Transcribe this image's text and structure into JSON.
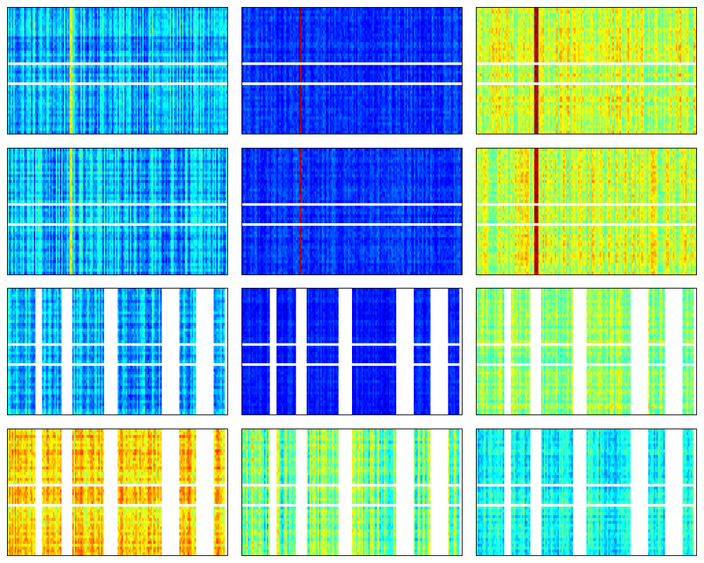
{
  "chart_data": {
    "type": "heatmap",
    "grid": {
      "rows": 4,
      "cols": 3
    },
    "title": "",
    "xlabel": "",
    "ylabel": "",
    "colormap": "jet",
    "colormap_stops": [
      "#00007f",
      "#0000ff",
      "#007fff",
      "#00ffff",
      "#7fff7f",
      "#ffff00",
      "#ff7f00",
      "#ff0000",
      "#7f0000"
    ],
    "missing_color": "#ffffff",
    "n_columns": 160,
    "n_rows": 44,
    "missing_rows": [
      19,
      26
    ],
    "missing_column_ranges": [
      [
        20,
        25
      ],
      [
        39,
        47
      ],
      [
        70,
        80
      ],
      [
        112,
        125
      ],
      [
        137,
        150
      ],
      [
        158,
        160
      ]
    ],
    "panels": [
      {
        "name": "row1-col1",
        "base_level": 0.3,
        "column_variation": 0.12,
        "row_variation": 0.05,
        "noise": 0.05,
        "hot_columns": [
          [
            45,
            47,
            0.65
          ]
        ],
        "column_gaps": false
      },
      {
        "name": "row1-col2",
        "base_level": 0.17,
        "column_variation": 0.05,
        "row_variation": 0.02,
        "noise": 0.04,
        "hot_columns": [
          [
            42,
            43,
            0.95
          ]
        ],
        "column_gaps": false
      },
      {
        "name": "row1-col3",
        "base_level": 0.58,
        "column_variation": 0.1,
        "row_variation": 0.04,
        "noise": 0.05,
        "hot_columns": [
          [
            42,
            45,
            0.95
          ]
        ],
        "column_gaps": false
      },
      {
        "name": "row2-col1",
        "base_level": 0.3,
        "column_variation": 0.12,
        "row_variation": 0.05,
        "noise": 0.05,
        "hot_columns": [
          [
            45,
            47,
            0.65
          ]
        ],
        "column_gaps": false
      },
      {
        "name": "row2-col2",
        "base_level": 0.17,
        "column_variation": 0.05,
        "row_variation": 0.02,
        "noise": 0.04,
        "hot_columns": [
          [
            42,
            43,
            0.95
          ]
        ],
        "column_gaps": false
      },
      {
        "name": "row2-col3",
        "base_level": 0.58,
        "column_variation": 0.1,
        "row_variation": 0.04,
        "noise": 0.05,
        "hot_columns": [
          [
            42,
            45,
            0.95
          ]
        ],
        "column_gaps": false
      },
      {
        "name": "row3-col1",
        "base_level": 0.3,
        "column_variation": 0.1,
        "row_variation": 0.05,
        "noise": 0.05,
        "hot_columns": [],
        "column_gaps": true
      },
      {
        "name": "row3-col2",
        "base_level": 0.15,
        "column_variation": 0.04,
        "row_variation": 0.02,
        "noise": 0.03,
        "hot_columns": [],
        "column_gaps": true
      },
      {
        "name": "row3-col3",
        "base_level": 0.52,
        "column_variation": 0.08,
        "row_variation": 0.04,
        "noise": 0.05,
        "hot_columns": [],
        "column_gaps": true
      },
      {
        "name": "row4-col1",
        "base_level": 0.66,
        "column_variation": 0.08,
        "row_variation": 0.06,
        "noise": 0.06,
        "hot_columns": [],
        "column_gaps": true
      },
      {
        "name": "row4-col2",
        "base_level": 0.48,
        "column_variation": 0.14,
        "row_variation": 0.04,
        "noise": 0.05,
        "hot_columns": [],
        "column_gaps": true
      },
      {
        "name": "row4-col3",
        "base_level": 0.38,
        "column_variation": 0.08,
        "row_variation": 0.04,
        "noise": 0.05,
        "hot_columns": [],
        "column_gaps": true
      }
    ]
  }
}
